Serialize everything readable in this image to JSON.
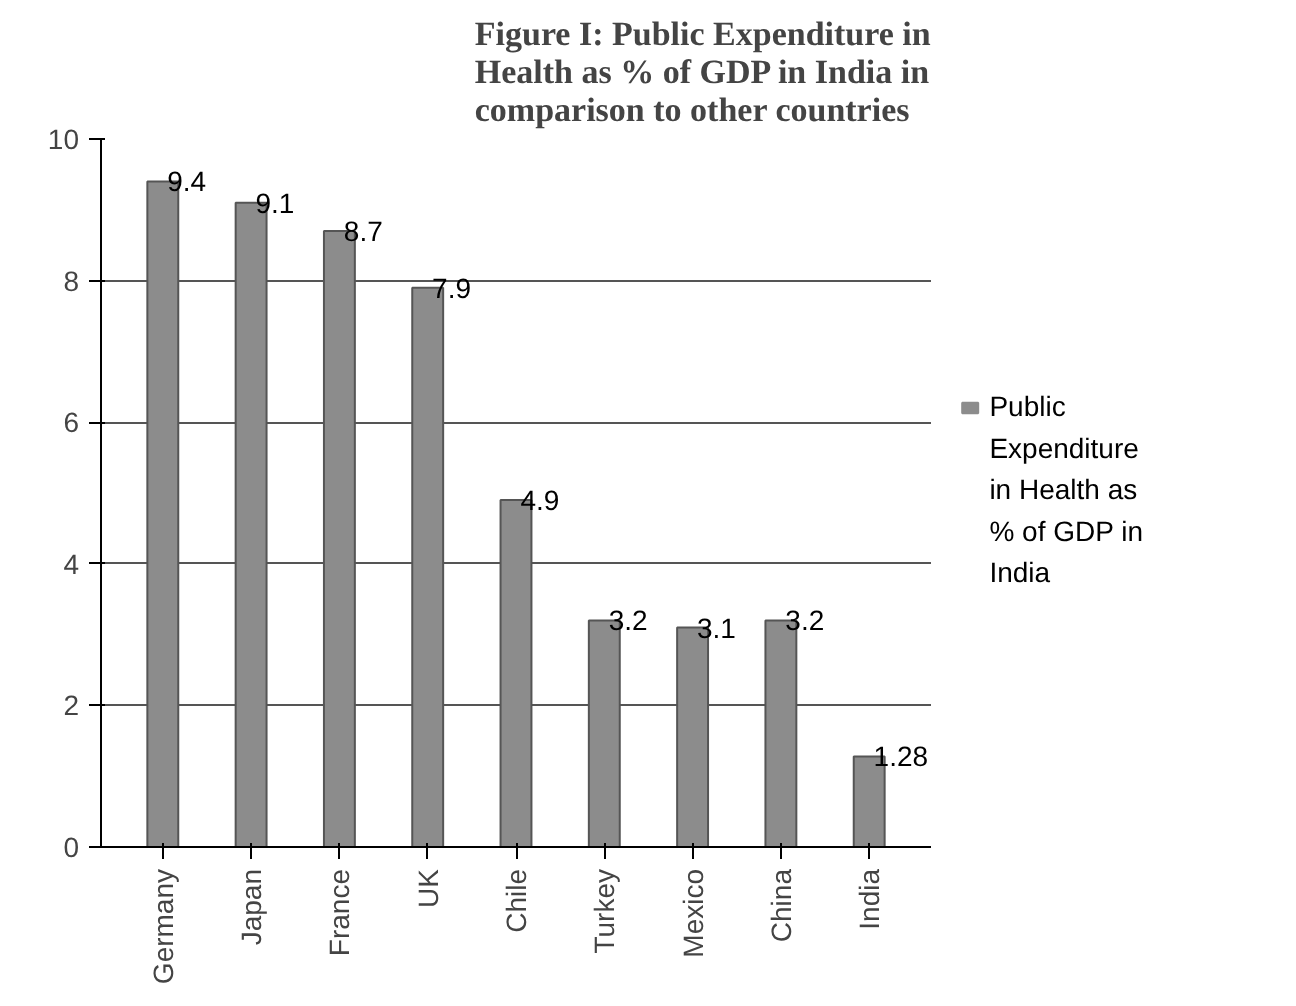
{
  "chart_data": {
    "type": "bar",
    "title": "Figure I: Public Expenditure in Health as % of GDP in India in comparison to other countries",
    "categories": [
      "Germany",
      "Japan",
      "France",
      "UK",
      "Chile",
      "Turkey",
      "Mexico",
      "China",
      "India"
    ],
    "series": [
      {
        "name": "Public Expenditure in Health as % of GDP in India",
        "color": "#8c8c8c",
        "values": [
          9.4,
          9.1,
          8.7,
          7.9,
          4.9,
          3.2,
          3.1,
          3.2,
          1.28
        ]
      }
    ],
    "ylim": [
      0,
      10
    ],
    "yticks": [
      0,
      2,
      4,
      6,
      8,
      10
    ],
    "grid": "y",
    "legend": "right",
    "data_labels": true
  }
}
